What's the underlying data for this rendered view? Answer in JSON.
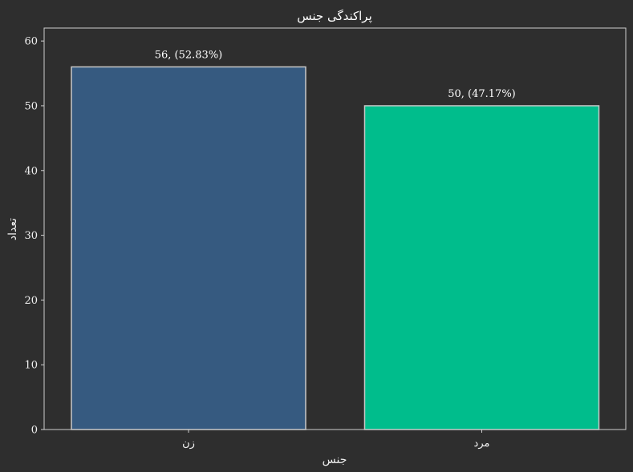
{
  "chart_data": {
    "type": "bar",
    "title": "پراکندگی جنس",
    "xlabel": "جنس",
    "ylabel": "تعداد",
    "categories": [
      "زن",
      "مرد"
    ],
    "values": [
      56,
      50
    ],
    "data_labels": [
      "56, (52.83%)",
      "50, (47.17%)"
    ],
    "colors": [
      "#365a80",
      "#00bd8c"
    ],
    "edge_color": "#c8c8c8",
    "background": "#2e2e2e",
    "ylim": [
      0,
      62
    ],
    "yticks": [
      0,
      10,
      20,
      30,
      40,
      50,
      60
    ],
    "grid": false,
    "legend": "none"
  }
}
